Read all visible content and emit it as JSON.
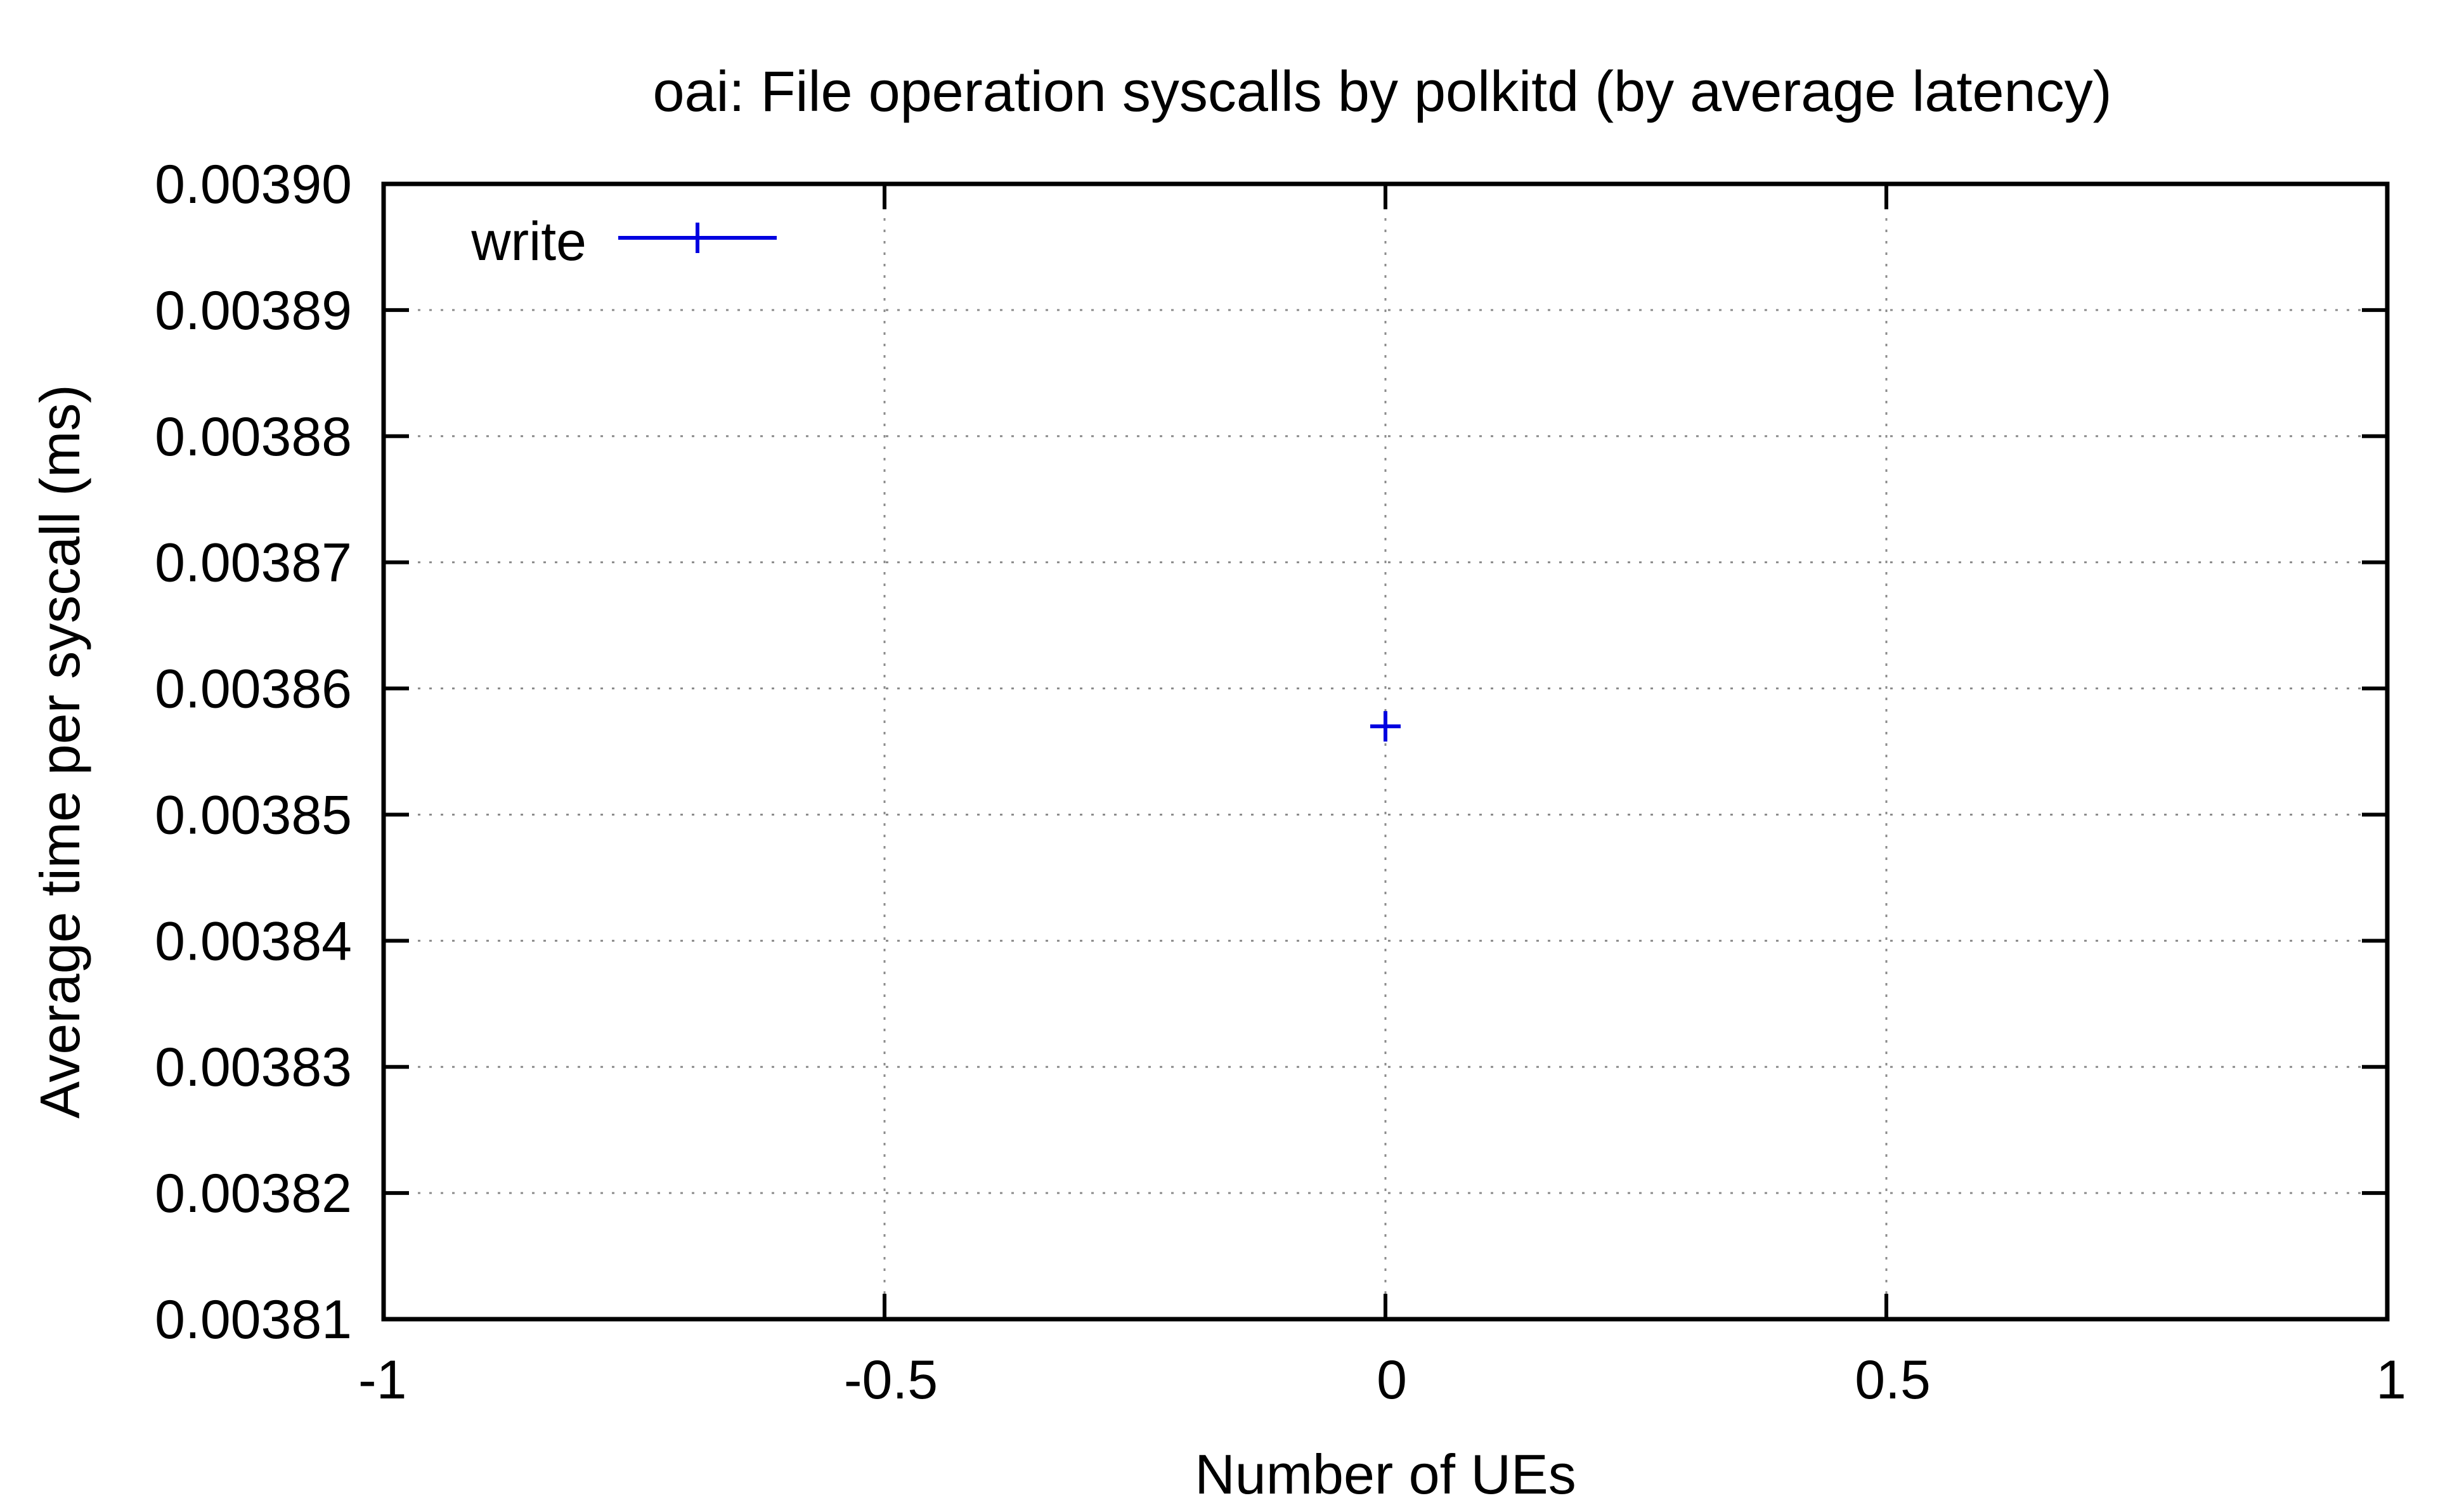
{
  "chart_data": {
    "type": "scatter",
    "title": "oai: File operation syscalls by polkitd (by average latency)",
    "xlabel": "Number of UEs",
    "ylabel": "Average time per syscall (ms)",
    "xlim": [
      -1,
      1
    ],
    "ylim": [
      0.00381,
      0.0039
    ],
    "x_ticks": [
      -1,
      -0.5,
      0,
      0.5,
      1
    ],
    "x_tick_labels": [
      "-1",
      "-0.5",
      "0",
      "0.5",
      "1"
    ],
    "y_ticks": [
      0.00381,
      0.00382,
      0.00383,
      0.00384,
      0.00385,
      0.00386,
      0.00387,
      0.00388,
      0.00389,
      0.0039
    ],
    "y_tick_labels": [
      "0.00381",
      "0.00382",
      "0.00383",
      "0.00384",
      "0.00385",
      "0.00386",
      "0.00387",
      "0.00388",
      "0.00389",
      "0.00390"
    ],
    "grid": true,
    "legend_position": "top-left",
    "series": [
      {
        "name": "write",
        "color": "#0000e0",
        "marker": "plus",
        "points": [
          {
            "x": 0,
            "y": 0.003857
          }
        ]
      }
    ]
  }
}
